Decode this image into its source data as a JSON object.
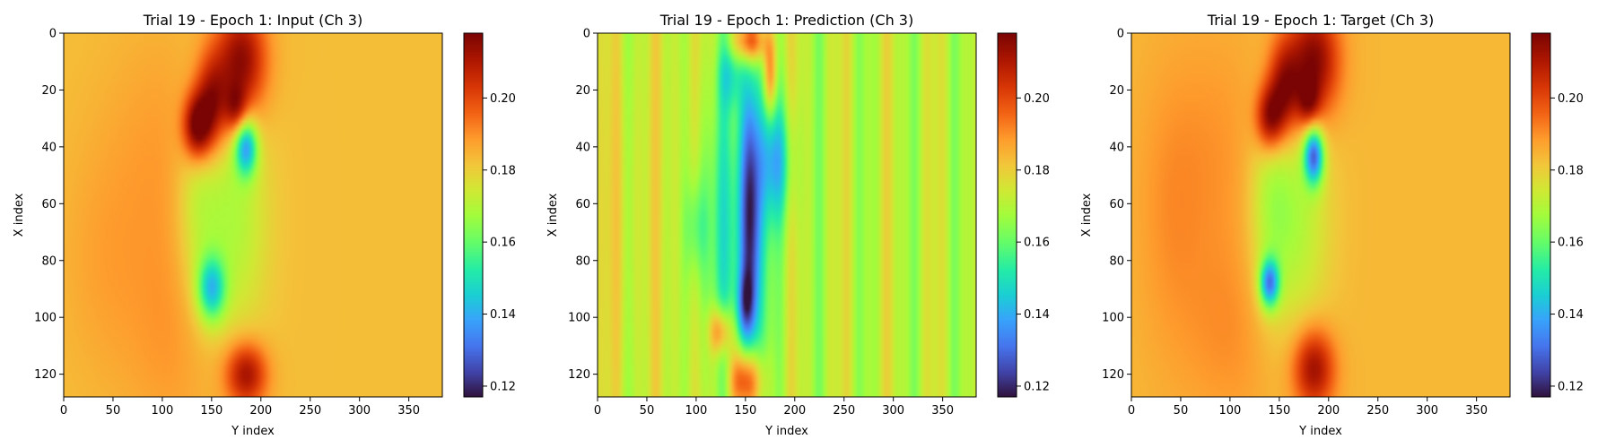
{
  "figure": {
    "colormap": "turbo",
    "colorbar_ticks": [
      "0.12",
      "0.14",
      "0.16",
      "0.18",
      "0.20"
    ]
  },
  "chart_data": [
    {
      "type": "heatmap",
      "title": "Trial 19 - Epoch 1: Input (Ch 3)",
      "xlabel": "Y index",
      "ylabel": "X index",
      "x_ticks": [
        "0",
        "50",
        "100",
        "150",
        "200",
        "250",
        "300",
        "350"
      ],
      "y_ticks": [
        "0",
        "20",
        "40",
        "60",
        "80",
        "100",
        "120"
      ],
      "xlim": [
        0,
        384
      ],
      "ylim": [
        128,
        0
      ],
      "value_range": [
        0.117,
        0.218
      ],
      "background_value": 0.183,
      "features": [
        {
          "x": 180,
          "y": 10,
          "sx": 18,
          "sy": 14,
          "v": 0.034
        },
        {
          "x": 150,
          "y": 25,
          "sx": 12,
          "sy": 12,
          "v": 0.03
        },
        {
          "x": 135,
          "y": 33,
          "sx": 10,
          "sy": 8,
          "v": 0.035
        },
        {
          "x": 175,
          "y": 27,
          "sx": 8,
          "sy": 6,
          "v": 0.02
        },
        {
          "x": 185,
          "y": 40,
          "sx": 8,
          "sy": 7,
          "v": -0.04
        },
        {
          "x": 150,
          "y": 90,
          "sx": 10,
          "sy": 8,
          "v": -0.035
        },
        {
          "x": 170,
          "y": 65,
          "sx": 25,
          "sy": 30,
          "v": -0.015
        },
        {
          "x": 135,
          "y": 60,
          "sx": 15,
          "sy": 25,
          "v": -0.01
        },
        {
          "x": 185,
          "y": 120,
          "sx": 15,
          "sy": 8,
          "v": 0.03
        },
        {
          "x": 110,
          "y": 105,
          "sx": 35,
          "sy": 30,
          "v": 0.006
        },
        {
          "x": 40,
          "y": 80,
          "sx": 30,
          "sy": 30,
          "v": 0.004
        },
        {
          "x": 100,
          "y": 40,
          "sx": 40,
          "sy": 30,
          "v": 0.005
        }
      ]
    },
    {
      "type": "heatmap",
      "title": "Trial 19 - Epoch 1: Prediction (Ch 3)",
      "xlabel": "Y index",
      "ylabel": "X index",
      "x_ticks": [
        "0",
        "50",
        "100",
        "150",
        "200",
        "250",
        "300",
        "350"
      ],
      "y_ticks": [
        "0",
        "20",
        "40",
        "60",
        "80",
        "100",
        "120"
      ],
      "xlim": [
        0,
        384
      ],
      "ylim": [
        128,
        0
      ],
      "value_range": [
        0.117,
        0.218
      ],
      "background_value": 0.171,
      "stripe_amplitude": 0.006,
      "features": [
        {
          "x": 155,
          "y": 65,
          "sx": 7,
          "sy": 40,
          "v": -0.05
        },
        {
          "x": 150,
          "y": 95,
          "sx": 6,
          "sy": 8,
          "v": -0.02
        },
        {
          "x": 180,
          "y": 45,
          "sx": 12,
          "sy": 15,
          "v": -0.025
        },
        {
          "x": 130,
          "y": 70,
          "sx": 30,
          "sy": 40,
          "v": -0.015
        },
        {
          "x": 100,
          "y": 68,
          "sx": 8,
          "sy": 12,
          "v": -0.012
        },
        {
          "x": 150,
          "y": 122,
          "sx": 12,
          "sy": 8,
          "v": 0.04
        },
        {
          "x": 125,
          "y": 105,
          "sx": 8,
          "sy": 6,
          "v": 0.03
        },
        {
          "x": 155,
          "y": 3,
          "sx": 12,
          "sy": 5,
          "v": 0.035
        },
        {
          "x": 175,
          "y": 15,
          "sx": 5,
          "sy": 10,
          "v": 0.025
        },
        {
          "x": 135,
          "y": 15,
          "sx": 8,
          "sy": 8,
          "v": -0.015
        },
        {
          "x": 30,
          "y": 65,
          "sx": 20,
          "sy": 60,
          "v": 0.006
        },
        {
          "x": 85,
          "y": 65,
          "sx": 10,
          "sy": 60,
          "v": 0.01
        }
      ]
    },
    {
      "type": "heatmap",
      "title": "Trial 19 - Epoch 1: Target (Ch 3)",
      "xlabel": "Y index",
      "ylabel": "X index",
      "x_ticks": [
        "0",
        "50",
        "100",
        "150",
        "200",
        "250",
        "300",
        "350"
      ],
      "y_ticks": [
        "0",
        "20",
        "40",
        "60",
        "80",
        "100",
        "120"
      ],
      "xlim": [
        0,
        384
      ],
      "ylim": [
        128,
        0
      ],
      "value_range": [
        0.117,
        0.218
      ],
      "background_value": 0.184,
      "features": [
        {
          "x": 185,
          "y": 10,
          "sx": 18,
          "sy": 14,
          "v": 0.034
        },
        {
          "x": 155,
          "y": 20,
          "sx": 12,
          "sy": 12,
          "v": 0.03
        },
        {
          "x": 140,
          "y": 30,
          "sx": 10,
          "sy": 8,
          "v": 0.03
        },
        {
          "x": 180,
          "y": 25,
          "sx": 8,
          "sy": 6,
          "v": 0.02
        },
        {
          "x": 185,
          "y": 43,
          "sx": 7,
          "sy": 7,
          "v": -0.05
        },
        {
          "x": 140,
          "y": 88,
          "sx": 7,
          "sy": 6,
          "v": -0.045
        },
        {
          "x": 165,
          "y": 65,
          "sx": 25,
          "sy": 30,
          "v": -0.015
        },
        {
          "x": 140,
          "y": 60,
          "sx": 15,
          "sy": 25,
          "v": -0.01
        },
        {
          "x": 185,
          "y": 118,
          "sx": 15,
          "sy": 10,
          "v": 0.03
        },
        {
          "x": 100,
          "y": 105,
          "sx": 35,
          "sy": 25,
          "v": 0.006
        },
        {
          "x": 40,
          "y": 65,
          "sx": 25,
          "sy": 35,
          "v": 0.005
        },
        {
          "x": 90,
          "y": 40,
          "sx": 40,
          "sy": 30,
          "v": 0.005
        }
      ]
    }
  ]
}
